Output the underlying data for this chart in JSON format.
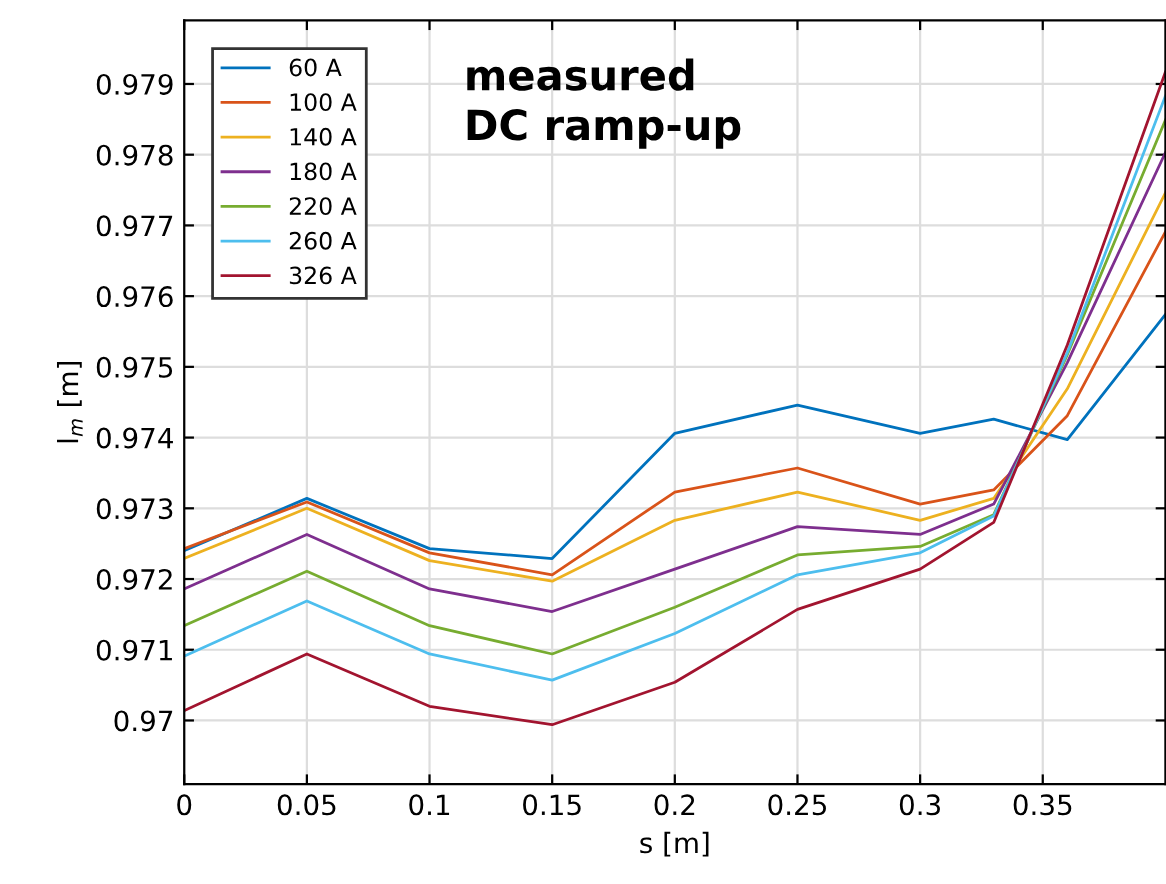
{
  "chart_data": {
    "type": "line",
    "xlabel": "s [m]",
    "ylabel": "l$_{m}$ [m]",
    "annotations": [
      "measured\nDC ramp-up"
    ],
    "x": [
      0,
      0.05,
      0.1,
      0.15,
      0.2,
      0.25,
      0.3,
      0.33,
      0.36,
      0.4
    ],
    "series": [
      {
        "name": "60 A",
        "color": "#0072bd",
        "values": [
          0.9724,
          0.97314,
          0.97243,
          0.97229,
          0.97406,
          0.97446,
          0.97406,
          0.97426,
          0.97397,
          0.97574
        ]
      },
      {
        "name": "100 A",
        "color": "#d95319",
        "values": [
          0.97243,
          0.97309,
          0.97237,
          0.97206,
          0.97323,
          0.97357,
          0.97306,
          0.97326,
          0.97431,
          0.97691
        ]
      },
      {
        "name": "140 A",
        "color": "#edb120",
        "values": [
          0.97229,
          0.973,
          0.97226,
          0.97197,
          0.97283,
          0.97323,
          0.97283,
          0.97314,
          0.97469,
          0.97746
        ]
      },
      {
        "name": "180 A",
        "color": "#7e2f8e",
        "values": [
          0.97186,
          0.97263,
          0.97186,
          0.97154,
          0.97214,
          0.97274,
          0.97263,
          0.97306,
          0.97506,
          0.97803
        ]
      },
      {
        "name": "220 A",
        "color": "#77ac30",
        "values": [
          0.97134,
          0.97211,
          0.97134,
          0.97094,
          0.9716,
          0.97234,
          0.97246,
          0.97291,
          0.97517,
          0.97849
        ]
      },
      {
        "name": "260 A",
        "color": "#4dbeee",
        "values": [
          0.97091,
          0.97169,
          0.97094,
          0.97057,
          0.97123,
          0.97206,
          0.97237,
          0.97289,
          0.9752,
          0.97883
        ]
      },
      {
        "name": "326 A",
        "color": "#a2142f",
        "values": [
          0.97014,
          0.97094,
          0.9702,
          0.96994,
          0.97054,
          0.97157,
          0.97214,
          0.9728,
          0.97531,
          0.97917
        ]
      }
    ],
    "xlim": [
      0,
      0.4
    ],
    "xticks": [
      0,
      0.05,
      0.1,
      0.15,
      0.2,
      0.25,
      0.3,
      0.35
    ],
    "ylim": [
      0.9691,
      0.9799
    ],
    "yticks": [
      0.97,
      0.971,
      0.972,
      0.973,
      0.974,
      0.975,
      0.976,
      0.977,
      0.978,
      0.979
    ],
    "grid": true,
    "legend": "top left",
    "marker": "none",
    "line_style": "solid"
  }
}
